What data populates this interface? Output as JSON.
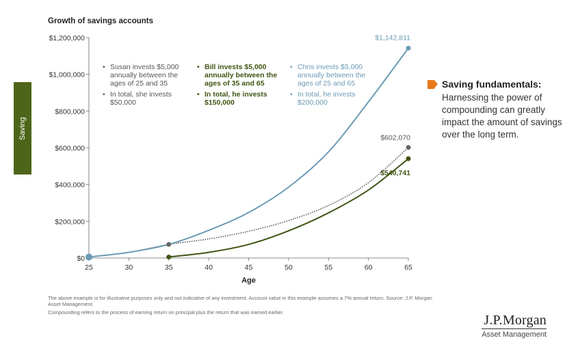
{
  "side_tab": {
    "label": "Saving"
  },
  "chart_title": "Growth of savings accounts",
  "chart_data": {
    "type": "line",
    "title": "Growth of savings accounts",
    "xlabel": "Age",
    "ylabel": "",
    "xlim": [
      25,
      65
    ],
    "ylim": [
      0,
      1200000
    ],
    "x_ticks": [
      25,
      30,
      35,
      40,
      45,
      50,
      55,
      60,
      65
    ],
    "y_ticks": [
      0,
      200000,
      400000,
      600000,
      800000,
      1000000,
      1200000
    ],
    "y_tick_labels": [
      "$0",
      "$200,000",
      "$400,000",
      "$600,000",
      "$800,000",
      "$1,000,000",
      "$1,200,000"
    ],
    "series": [
      {
        "name": "Chris",
        "color": "#6b9bb4",
        "style": "solid",
        "x": [
          25,
          30,
          35,
          40,
          45,
          50,
          55,
          60,
          65
        ],
        "y": [
          5350,
          30772,
          73918,
          150630,
          247810,
          385670,
          577880,
          850000,
          1142811
        ]
      },
      {
        "name": "Susan",
        "color": "#555555",
        "style": "dotted",
        "x": [
          25,
          30,
          35,
          40,
          45,
          50,
          55,
          60,
          65
        ],
        "y": [
          5350,
          30772,
          73918,
          103672,
          145404,
          203935,
          286030,
          410000,
          602070
        ]
      },
      {
        "name": "Bill",
        "color": "#3f5413",
        "style": "solid",
        "x": [
          35,
          40,
          45,
          50,
          55,
          60,
          65
        ],
        "y": [
          5350,
          30772,
          73918,
          147780,
          245780,
          370000,
          540741
        ]
      }
    ],
    "end_labels": [
      {
        "series": "Chris",
        "text": "$1,142,811",
        "color": "#6b9bb4"
      },
      {
        "series": "Susan",
        "text": "$602,070",
        "color": "#555555"
      },
      {
        "series": "Bill",
        "text": "$540,741",
        "color": "#3f5413"
      }
    ]
  },
  "annotations": {
    "susan": {
      "line1": "Susan invests $5,000 annually between the ages of 25 and 35",
      "line2": "In total, she invests $50,000"
    },
    "bill": {
      "line1": "Bill invests $5,000 annually between the ages of 35 and 65",
      "line2": "In total, he invests $150,000"
    },
    "chris": {
      "line1": "Chris invests $5,000 annually between the ages of 25 and 65",
      "line2": "In total, he invests $200,000"
    }
  },
  "fundamentals": {
    "title": "Saving fundamentals:",
    "body": "Harnessing the power of compounding can greatly impact the amount of savings over the long term."
  },
  "footnotes": {
    "line1": "The above example is for illustrative purposes only and not indicative of any investment. Account value in this example assumes a 7% annual return. Source: J.P. Morgan Asset Management.",
    "line2": "Compounding refers to the process of earning return on principal plus the return that was earned earlier."
  },
  "logo": {
    "brand": "J.P.Morgan",
    "sub": "Asset Management"
  },
  "colors": {
    "side_tab": "#4d6519",
    "chris": "#6b9bb4",
    "bill": "#3f5413",
    "susan": "#555555",
    "accent": "#e8791a"
  }
}
